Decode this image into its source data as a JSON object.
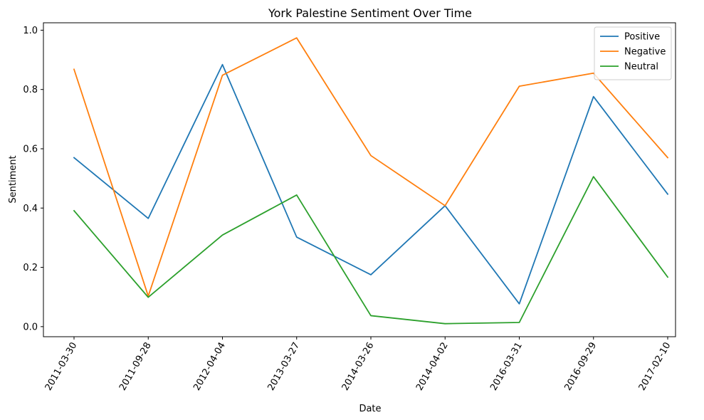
{
  "chart_data": {
    "type": "line",
    "title": "York Palestine Sentiment Over Time",
    "xlabel": "Date",
    "ylabel": "Sentiment",
    "x": [
      "2011-03-30",
      "2011-09-28",
      "2012-04-04",
      "2013-03-27",
      "2014-03-26",
      "2014-04-02",
      "2016-03-31",
      "2016-09-29",
      "2017-02-10"
    ],
    "ylim": [
      -0.034,
      1.025
    ],
    "yticks": [
      "0.0",
      "0.2",
      "0.4",
      "0.6",
      "0.8",
      "1.0"
    ],
    "grid": false,
    "legend_position": "top-right",
    "series": [
      {
        "name": "Positive",
        "color": "#1f77b4",
        "values": [
          0.57,
          0.365,
          0.884,
          0.302,
          0.175,
          0.408,
          0.077,
          0.776,
          0.447
        ]
      },
      {
        "name": "Negative",
        "color": "#ff7f0e",
        "values": [
          0.868,
          0.103,
          0.848,
          0.974,
          0.577,
          0.408,
          0.811,
          0.855,
          0.57
        ]
      },
      {
        "name": "Neutral",
        "color": "#2ca02c",
        "values": [
          0.391,
          0.099,
          0.309,
          0.444,
          0.037,
          0.01,
          0.014,
          0.506,
          0.167
        ]
      }
    ]
  }
}
